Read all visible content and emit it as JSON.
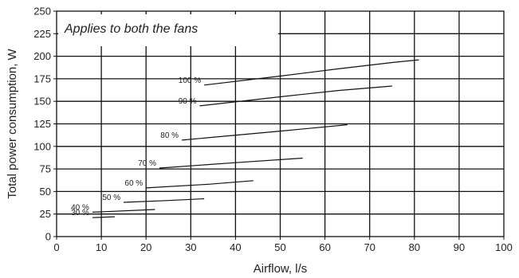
{
  "chart_data": {
    "type": "line",
    "title": "",
    "xlabel": "Airflow, l/s",
    "ylabel": "Total power consumption, W",
    "annotation": "Applies to both the fans",
    "xlim": [
      0,
      100
    ],
    "ylim": [
      0,
      250
    ],
    "xticks": [
      "0",
      "10",
      "20",
      "30",
      "40",
      "50",
      "60",
      "70",
      "80",
      "90",
      "100"
    ],
    "yticks": [
      "0",
      "25",
      "50",
      "75",
      "100",
      "125",
      "150",
      "175",
      "200",
      "225",
      "250"
    ],
    "grid": true,
    "legend": "none",
    "line_color": "#111111",
    "series": [
      {
        "label": "100 %",
        "points": [
          [
            33,
            168
          ],
          [
            50,
            178
          ],
          [
            63,
            186
          ],
          [
            75,
            193
          ],
          [
            81,
            196
          ]
        ]
      },
      {
        "label": "90 %",
        "points": [
          [
            32,
            145
          ],
          [
            50,
            155
          ],
          [
            63,
            162
          ],
          [
            75,
            167
          ]
        ]
      },
      {
        "label": "80 %",
        "points": [
          [
            28,
            107
          ],
          [
            50,
            117
          ],
          [
            65,
            124
          ]
        ]
      },
      {
        "label": "70 %",
        "points": [
          [
            23,
            76
          ],
          [
            40,
            82
          ],
          [
            55,
            87
          ]
        ]
      },
      {
        "label": "60 %",
        "points": [
          [
            20,
            54
          ],
          [
            34,
            58
          ],
          [
            44,
            62
          ]
        ]
      },
      {
        "label": "50 %",
        "points": [
          [
            15,
            38
          ],
          [
            25,
            40
          ],
          [
            33,
            42
          ]
        ]
      },
      {
        "label": "40 %",
        "points": [
          [
            8,
            27
          ],
          [
            22,
            30
          ]
        ]
      },
      {
        "label": "30 %",
        "points": [
          [
            8,
            21
          ],
          [
            13,
            22
          ]
        ]
      }
    ]
  }
}
